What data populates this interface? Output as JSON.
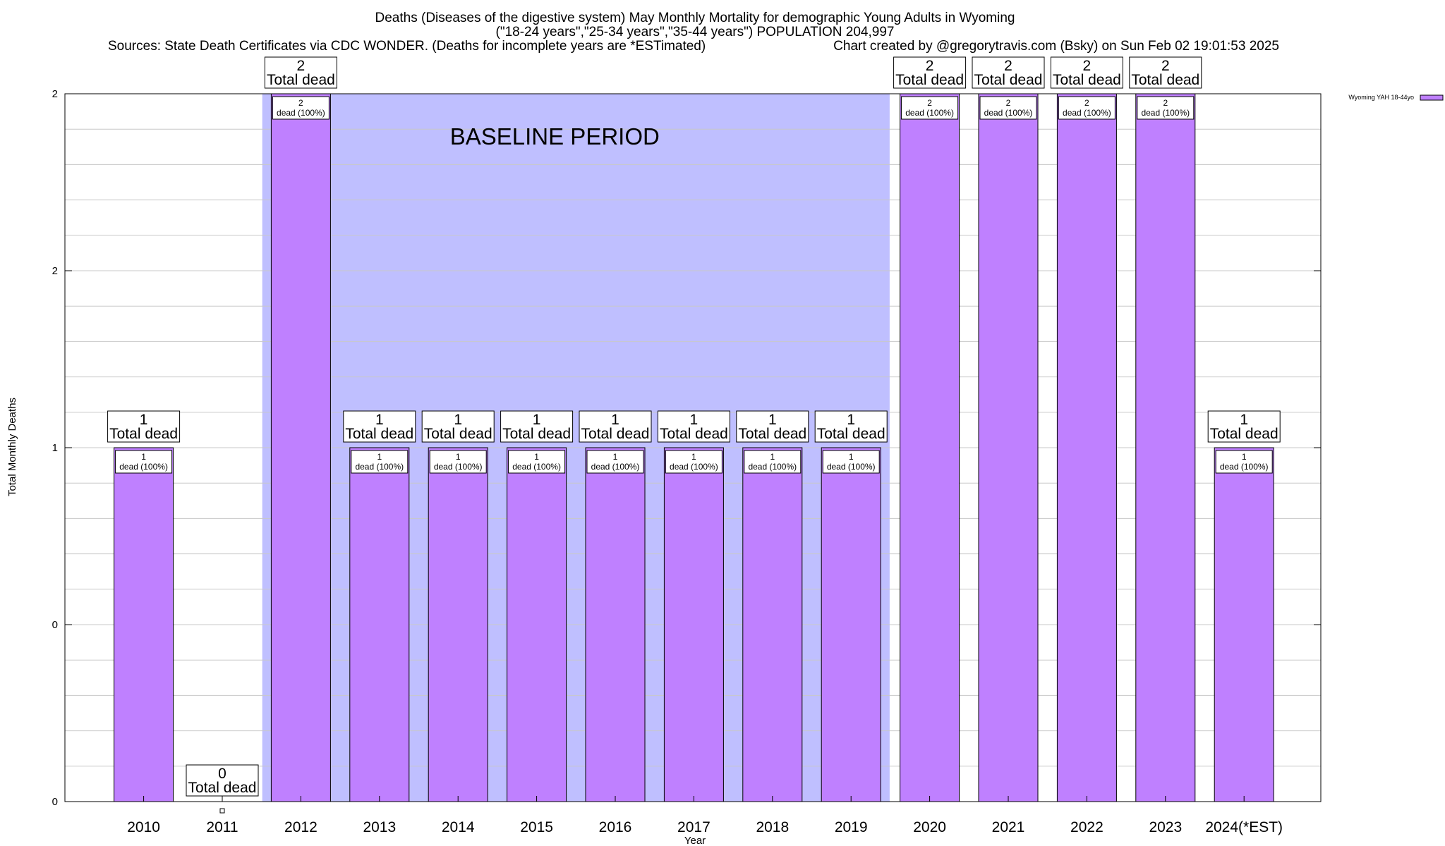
{
  "colors": {
    "bar": "#bf80ff",
    "baseline": "#bfbfff",
    "grid": "#c8c8c8"
  },
  "chart_data": {
    "type": "bar",
    "title": "Deaths (Diseases of the digestive system) May Monthly Mortality for demographic Young Adults in Wyoming",
    "subtitle": "(\"18-24 years\",\"25-34 years\",\"35-44 years\") POPULATION 204,997",
    "sources": "Sources: State Death Certificates via CDC WONDER. (Deaths for incomplete years are *ESTimated)",
    "credit": "Chart created by @gregorytravis.com (Bsky) on Sun Feb 02 19:01:53 2025",
    "xlabel": "Year",
    "ylabel": "Total Monthly Deaths",
    "ylim": [
      0,
      2
    ],
    "yticks": [
      {
        "value": 0,
        "label": "0"
      },
      {
        "value": 0.5,
        "label": "0"
      },
      {
        "value": 1,
        "label": "1"
      },
      {
        "value": 1.5,
        "label": "2"
      },
      {
        "value": 2,
        "label": "2"
      }
    ],
    "grid": true,
    "legend": {
      "placement": "top-right",
      "label": "Wyoming YAH 18-44yo"
    },
    "baseline": {
      "label": "BASELINE PERIOD",
      "from": "2012",
      "to": "2019"
    },
    "categories": [
      "2010",
      "2011",
      "2012",
      "2013",
      "2014",
      "2015",
      "2016",
      "2017",
      "2018",
      "2019",
      "2020",
      "2021",
      "2022",
      "2023",
      "2024(*EST)"
    ],
    "values": [
      1,
      0,
      2,
      1,
      1,
      1,
      1,
      1,
      1,
      1,
      2,
      2,
      2,
      2,
      1
    ],
    "total_labels": [
      "1",
      "0",
      "2",
      "1",
      "1",
      "1",
      "1",
      "1",
      "1",
      "1",
      "2",
      "2",
      "2",
      "2",
      "1"
    ],
    "total_suffix": "Total dead",
    "inner_labels": [
      "1",
      "",
      "2",
      "1",
      "1",
      "1",
      "1",
      "1",
      "1",
      "1",
      "2",
      "2",
      "2",
      "2",
      "1"
    ],
    "inner_suffix": "dead (100%)"
  }
}
